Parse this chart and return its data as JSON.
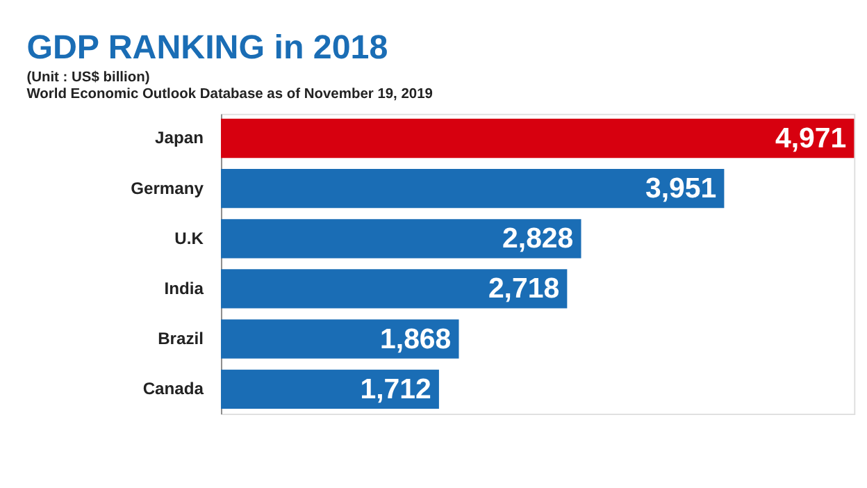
{
  "chart_data": {
    "type": "bar",
    "orientation": "horizontal",
    "title": "GDP RANKING in 2018",
    "subtitle": "(Unit : US$ billion)",
    "annotations": [
      "World Economic Outlook Database as of November 19, 2019"
    ],
    "categories": [
      "Japan",
      "Germany",
      "U.K",
      "India",
      "Brazil",
      "Canada"
    ],
    "values": [
      4971,
      3951,
      2828,
      2718,
      1868,
      1712
    ],
    "value_labels": [
      "4,971",
      "3,951",
      "2,828",
      "2,718",
      "1,868",
      "1,712"
    ],
    "colors": [
      "#d7000f",
      "#1a6db5",
      "#1a6db5",
      "#1a6db5",
      "#1a6db5",
      "#1a6db5"
    ],
    "tick_labels": "y"
  }
}
